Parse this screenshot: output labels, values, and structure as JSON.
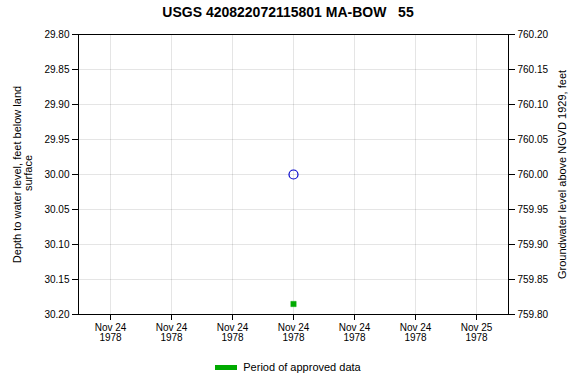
{
  "chart_data": {
    "type": "scatter",
    "title": "USGS 420822072115801 MA-BOW   55",
    "ylabel": "Depth to water level, feet below land\n surface",
    "y2label": "Groundwater level above NGVD 1929, feet",
    "categories": [
      "Nov 24\n1978",
      "Nov 24\n1978",
      "Nov 24\n1978",
      "Nov 24\n1978",
      "Nov 24\n1978",
      "Nov 24\n1978",
      "Nov 25\n1978"
    ],
    "series": [
      {
        "color": "#0000cc",
        "marker": "open_circle",
        "values": [
          null,
          null,
          null,
          30.0,
          null,
          null,
          null
        ]
      },
      {
        "name": "Period of approved data",
        "color": "#00aa00",
        "marker": "square",
        "values": [
          null,
          null,
          null,
          30.185,
          null,
          null,
          null
        ]
      }
    ],
    "ylim": [
      30.2,
      29.8
    ],
    "yticks": [
      {
        "value": 29.8,
        "label": "29.80"
      },
      {
        "value": 29.85,
        "label": "29.85"
      },
      {
        "value": 29.9,
        "label": "29.90"
      },
      {
        "value": 29.95,
        "label": "29.95"
      },
      {
        "value": 30.0,
        "label": "30.00"
      },
      {
        "value": 30.05,
        "label": "30.05"
      },
      {
        "value": 30.1,
        "label": "30.10"
      },
      {
        "value": 30.15,
        "label": "30.15"
      },
      {
        "value": 30.2,
        "label": "30.20"
      }
    ],
    "y2lim": [
      759.8,
      760.2
    ],
    "y2ticks": [
      {
        "value": 760.2,
        "label": "760.20"
      },
      {
        "value": 760.15,
        "label": "760.15"
      },
      {
        "value": 760.1,
        "label": "760.10"
      },
      {
        "value": 760.05,
        "label": "760.05"
      },
      {
        "value": 760.0,
        "label": "760.00"
      },
      {
        "value": 759.95,
        "label": "759.95"
      },
      {
        "value": 759.9,
        "label": "759.90"
      },
      {
        "value": 759.85,
        "label": "759.85"
      },
      {
        "value": 759.8,
        "label": "759.80"
      }
    ],
    "grid": true,
    "legend": "bottom"
  }
}
